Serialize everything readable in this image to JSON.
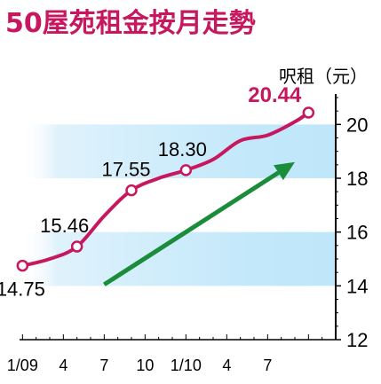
{
  "chart_data": {
    "type": "line",
    "title": "50屋苑租金按月走勢",
    "ylabel": "呎租（元）",
    "xlabel": "",
    "x_tick_labels": [
      "1/09",
      "4",
      "7",
      "10",
      "1/10",
      "4",
      "7"
    ],
    "y_ticks": [
      "12",
      "14",
      "16",
      "18",
      "20"
    ],
    "ylim": [
      12,
      21
    ],
    "grid": false,
    "legend": "none",
    "series": [
      {
        "points": [
          {
            "x": 1,
            "y": 14.75
          },
          {
            "x": 3,
            "y": 15.0
          },
          {
            "x": 5,
            "y": 15.46
          },
          {
            "x": 7,
            "y": 16.6
          },
          {
            "x": 9,
            "y": 17.55
          },
          {
            "x": 11,
            "y": 18.0
          },
          {
            "x": 13,
            "y": 18.3
          },
          {
            "x": 15,
            "y": 18.7
          },
          {
            "x": 17,
            "y": 19.4
          },
          {
            "x": 19,
            "y": 19.6
          },
          {
            "x": 21,
            "y": 20.1
          },
          {
            "x": 22,
            "y": 20.44
          }
        ],
        "color": "#c7185f"
      }
    ],
    "data_labels": [
      {
        "x": 1,
        "y": 14.75,
        "text": "14.75",
        "highlight": false
      },
      {
        "x": 5,
        "y": 15.46,
        "text": "15.46",
        "highlight": false
      },
      {
        "x": 9,
        "y": 17.55,
        "text": "17.55",
        "highlight": false
      },
      {
        "x": 13,
        "y": 18.3,
        "text": "18.30",
        "highlight": false
      },
      {
        "x": 22,
        "y": 20.44,
        "text": "20.44",
        "highlight": true
      }
    ],
    "bands": [
      {
        "from": 14,
        "to": 16
      },
      {
        "from": 18,
        "to": 20
      }
    ],
    "trend_arrow": {
      "from": {
        "x": 7,
        "y": 14.05
      },
      "to": {
        "x": 21,
        "y": 18.6
      },
      "color": "#1a8c3a"
    },
    "colors": {
      "line": "#c7185f",
      "marker_fill": "#ffffff",
      "band_light": "#e6f5fd",
      "band_mid": "#bfe6fa",
      "axis": "#000000",
      "title": "#c7185f",
      "highlight": "#c7185f",
      "arrow": "#1a8c3a"
    }
  }
}
